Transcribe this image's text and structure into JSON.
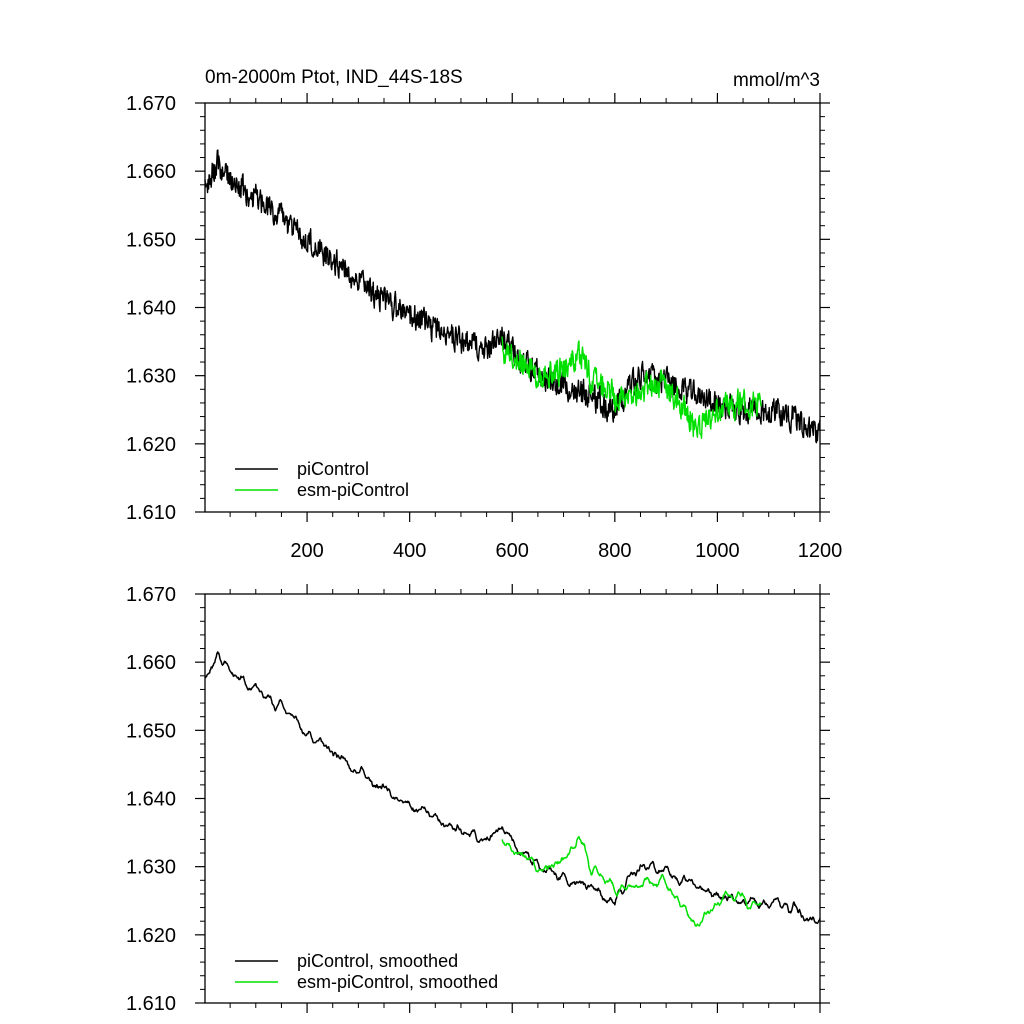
{
  "figure": {
    "title_left": "0m-2000m Ptot, IND_44S-18S",
    "title_right": "mmol/m^3"
  },
  "colors": {
    "piControl": "#000000",
    "esm_piControl": "#00e000",
    "axes": "#000000"
  },
  "chart_data": [
    {
      "type": "line",
      "title": "0m-2000m Ptot, IND_44S-18S",
      "units_label": "mmol/m^3",
      "xlabel": "",
      "ylabel": "",
      "xlim": [
        1,
        1200
      ],
      "ylim": [
        1.61,
        1.67
      ],
      "xticks": [
        200,
        400,
        600,
        800,
        1000,
        1200
      ],
      "xtick_labels": [
        "200",
        "400",
        "600",
        "800",
        "1000",
        "1200"
      ],
      "yticks": [
        1.61,
        1.62,
        1.63,
        1.64,
        1.65,
        1.66,
        1.67
      ],
      "ytick_labels": [
        "1.610",
        "1.620",
        "1.630",
        "1.640",
        "1.650",
        "1.660",
        "1.670"
      ],
      "legend_position": "bottom-left",
      "series": [
        {
          "name": "piControl",
          "color": "#000000",
          "x_start": 1,
          "x_end": 1200,
          "trend_x": [
            1,
            25,
            50,
            100,
            150,
            200,
            250,
            300,
            350,
            400,
            450,
            500,
            550,
            580,
            620,
            680,
            750,
            800,
            850,
            900,
            950,
            1000,
            1050,
            1100,
            1150,
            1200
          ],
          "trend_y": [
            1.658,
            1.661,
            1.659,
            1.656,
            1.653,
            1.65,
            1.647,
            1.644,
            1.641,
            1.639,
            1.637,
            1.635,
            1.634,
            1.636,
            1.632,
            1.629,
            1.627,
            1.625,
            1.63,
            1.629,
            1.627,
            1.626,
            1.625,
            1.625,
            1.624,
            1.621
          ],
          "noise_amplitude": 0.0026
        },
        {
          "name": "esm-piControl",
          "color": "#00e000",
          "x_start": 580,
          "x_end": 1085,
          "trend_x": [
            580,
            620,
            660,
            700,
            730,
            760,
            800,
            840,
            880,
            920,
            960,
            1000,
            1040,
            1085
          ],
          "trend_y": [
            1.634,
            1.632,
            1.63,
            1.631,
            1.633,
            1.629,
            1.627,
            1.627,
            1.629,
            1.627,
            1.622,
            1.625,
            1.626,
            1.626
          ],
          "noise_amplitude": 0.0026
        }
      ],
      "legend_entries": [
        "piControl",
        "esm-piControl"
      ]
    },
    {
      "type": "line",
      "title": "",
      "xlabel": "",
      "ylabel": "",
      "xlim": [
        1,
        1200
      ],
      "ylim": [
        1.61,
        1.67
      ],
      "xticks": [
        200,
        400,
        600,
        800,
        1000,
        1200
      ],
      "xtick_labels": [],
      "yticks": [
        1.61,
        1.62,
        1.63,
        1.64,
        1.65,
        1.66,
        1.67
      ],
      "ytick_labels": [
        "1.610",
        "1.620",
        "1.630",
        "1.640",
        "1.650",
        "1.660",
        "1.670"
      ],
      "legend_position": "bottom-left",
      "series": [
        {
          "name": "piControl, smoothed",
          "color": "#000000",
          "x_start": 1,
          "x_end": 1200,
          "trend_x": [
            1,
            25,
            50,
            100,
            150,
            200,
            250,
            300,
            350,
            400,
            450,
            500,
            550,
            580,
            620,
            680,
            750,
            800,
            850,
            900,
            950,
            1000,
            1050,
            1100,
            1150,
            1200
          ],
          "trend_y": [
            1.658,
            1.661,
            1.659,
            1.656,
            1.653,
            1.65,
            1.647,
            1.644,
            1.641,
            1.639,
            1.637,
            1.635,
            1.634,
            1.636,
            1.632,
            1.629,
            1.627,
            1.625,
            1.63,
            1.629,
            1.627,
            1.626,
            1.625,
            1.625,
            1.624,
            1.621
          ],
          "noise_amplitude": 0.0009
        },
        {
          "name": "esm-piControl, smoothed",
          "color": "#00e000",
          "x_start": 580,
          "x_end": 1085,
          "trend_x": [
            580,
            620,
            660,
            700,
            730,
            760,
            800,
            840,
            880,
            920,
            960,
            1000,
            1040,
            1085
          ],
          "trend_y": [
            1.634,
            1.632,
            1.63,
            1.631,
            1.634,
            1.629,
            1.627,
            1.627,
            1.628,
            1.626,
            1.621,
            1.625,
            1.626,
            1.624
          ],
          "noise_amplitude": 0.0009
        }
      ],
      "legend_entries": [
        "piControl, smoothed",
        "esm-piControl, smoothed"
      ]
    }
  ]
}
